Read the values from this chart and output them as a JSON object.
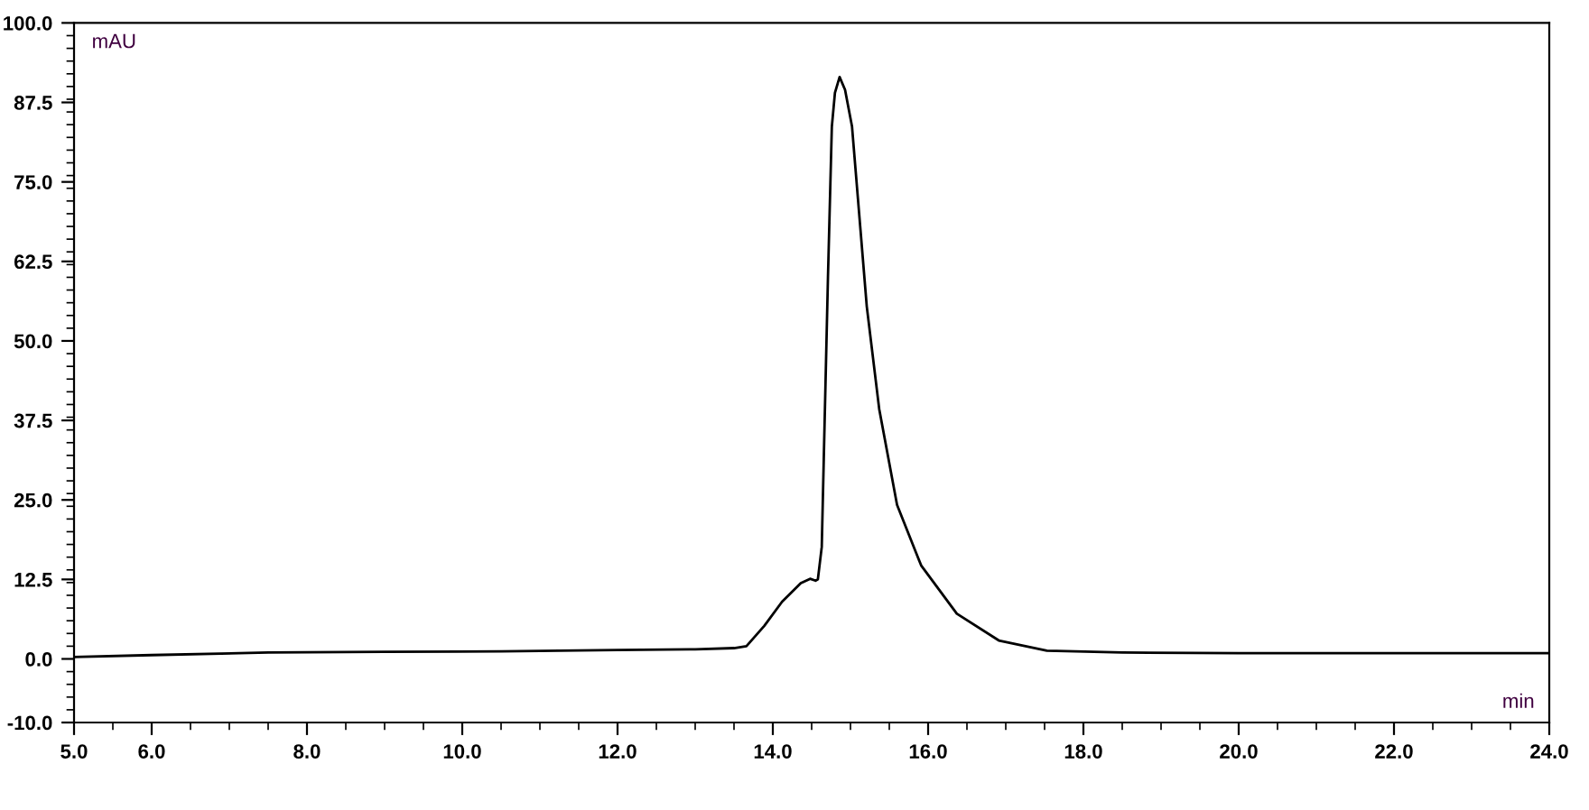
{
  "chart_data": {
    "type": "line",
    "xlabel": "min",
    "ylabel": "mAU",
    "x": [
      5.0,
      6.0,
      7.5,
      9.0,
      10.5,
      12.0,
      13.0,
      13.5,
      13.66,
      13.89,
      14.12,
      14.36,
      14.48,
      14.55,
      14.58,
      14.63,
      14.71,
      14.76,
      14.8,
      14.86,
      14.93,
      15.02,
      15.21,
      15.37,
      15.6,
      15.91,
      16.37,
      16.91,
      17.53,
      18.5,
      20.0,
      22.0,
      24.0
    ],
    "series": [
      {
        "color": "#000000",
        "values": [
          0.3,
          0.6,
          1.0,
          1.1,
          1.2,
          1.4,
          1.5,
          1.7,
          2.0,
          5.2,
          9.0,
          11.9,
          12.6,
          12.3,
          12.5,
          17.6,
          60.0,
          83.7,
          89.0,
          91.5,
          89.5,
          83.7,
          55.4,
          39.3,
          24.2,
          14.7,
          7.1,
          2.9,
          1.3,
          1.0,
          0.9,
          0.9,
          0.9
        ]
      }
    ],
    "xlim": [
      5.0,
      24.0
    ],
    "xticks": [
      {
        "value": 5,
        "label": "5.0"
      },
      {
        "value": 6,
        "label": "6.0"
      },
      {
        "value": 8,
        "label": "8.0"
      },
      {
        "value": 10,
        "label": "10.0"
      },
      {
        "value": 12,
        "label": "12.0"
      },
      {
        "value": 14,
        "label": "14.0"
      },
      {
        "value": 16,
        "label": "16.0"
      },
      {
        "value": 18,
        "label": "18.0"
      },
      {
        "value": 20,
        "label": "20.0"
      },
      {
        "value": 22,
        "label": "22.0"
      },
      {
        "value": 24,
        "label": "24.0"
      }
    ],
    "ylim": [
      -10.0,
      100.0
    ],
    "yticks": [
      {
        "value": -10,
        "label": "-10.0"
      },
      {
        "value": 0,
        "label": "0.0"
      },
      {
        "value": 12.5,
        "label": "12.5"
      },
      {
        "value": 25,
        "label": "25.0"
      },
      {
        "value": 37.5,
        "label": "37.5"
      },
      {
        "value": 50,
        "label": "50.0"
      },
      {
        "value": 62.5,
        "label": "62.5"
      },
      {
        "value": 75,
        "label": "75.0"
      },
      {
        "value": 87.5,
        "label": "87.5"
      },
      {
        "value": 100,
        "label": "100.0"
      }
    ],
    "grid": false,
    "marker": "none",
    "line_style": "solid",
    "legend": false
  }
}
